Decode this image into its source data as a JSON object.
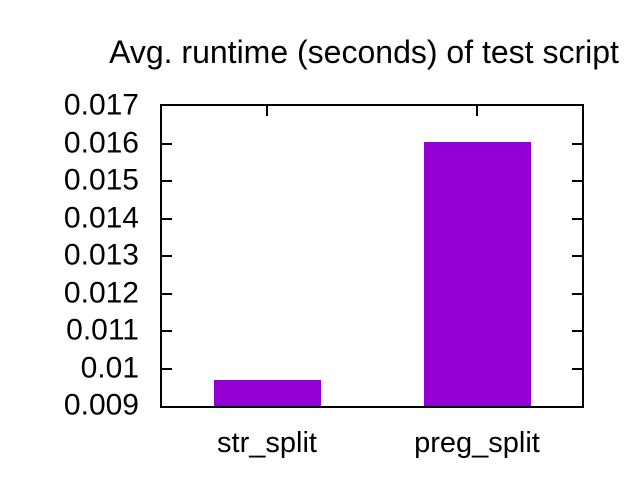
{
  "chart_data": {
    "type": "bar",
    "title": "Avg. runtime (seconds) of test script",
    "categories": [
      "str_split",
      "preg_split"
    ],
    "values": [
      0.0097,
      0.01605
    ],
    "xlabel": "",
    "ylabel": "",
    "ylim": [
      0.009,
      0.017
    ],
    "ytick_step": 0.001,
    "ytick_labels": [
      "0.009",
      "0.01",
      "0.011",
      "0.012",
      "0.013",
      "0.014",
      "0.015",
      "0.016",
      "0.017"
    ],
    "bar_color": "#9400d3",
    "bar_width_ratio": 0.51,
    "grid": false,
    "legend": "none",
    "background_color": "#ffffff",
    "text_color": "#000000",
    "border_color": "#000000"
  }
}
